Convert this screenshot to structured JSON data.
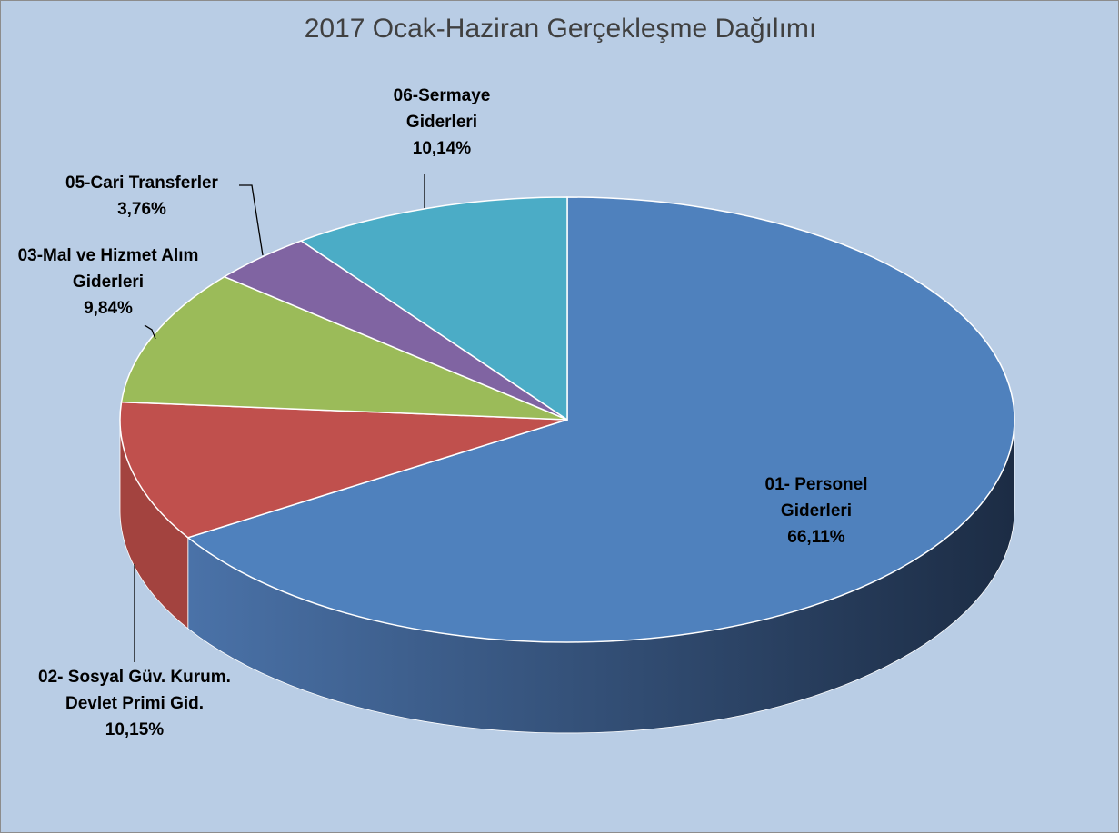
{
  "chart_data": {
    "type": "pie3d",
    "title": "2017 Ocak-Haziran Gerçekleşme Dağılımı",
    "categories": [
      "01- Personel Giderleri",
      "02- Sosyal Güv. Kurum. Devlet Primi Gid.",
      "03-Mal ve Hizmet Alım Giderleri",
      "05-Cari Transferler",
      "06-Sermaye Giderleri"
    ],
    "values": [
      66.11,
      10.15,
      9.84,
      3.76,
      10.14
    ],
    "value_labels": [
      "66,11%",
      "10,15%",
      "9,84%",
      "3,76%",
      "10,14%"
    ],
    "colors": [
      "#4f81bd",
      "#c0504d",
      "#9bbb59",
      "#8064a2",
      "#4bacc6"
    ]
  }
}
